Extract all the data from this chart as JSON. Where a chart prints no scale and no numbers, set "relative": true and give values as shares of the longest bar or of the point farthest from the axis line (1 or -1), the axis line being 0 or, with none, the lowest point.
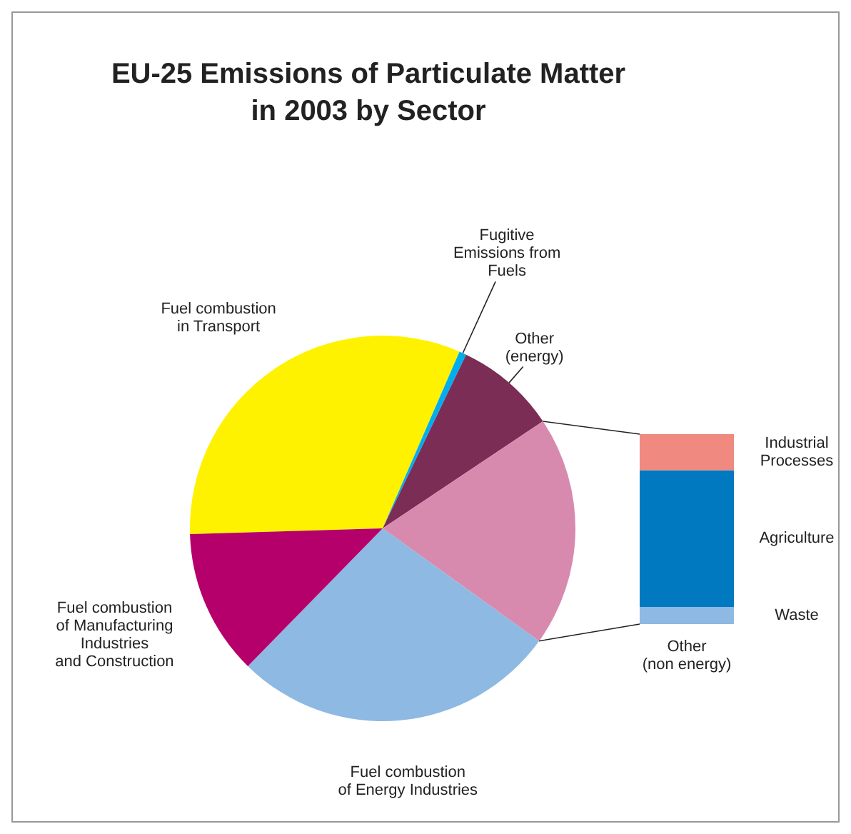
{
  "chart_data": [
    {
      "type": "pie",
      "title": "EU-25 Emissions of Particulate Matter\nin 2003 by Sector",
      "categories": [
        "Fuel combustion\nin Transport",
        "Fugitive\nEmissions from\nFuels",
        "Other\n(energy)",
        null,
        "Fuel combustion\nof Energy Industries",
        "Fuel combustion\nof Manufacturing\nIndustries\nand Construction"
      ],
      "values": [
        32.0,
        0.6,
        8.5,
        19.3,
        27.4,
        12.2
      ],
      "colors": [
        "#fff200",
        "#00aeef",
        "#7b2d55",
        "#d88aae",
        "#8db9e2",
        "#b5006b"
      ]
    },
    {
      "type": "bar",
      "categories": [
        "Other\n(non energy)"
      ],
      "stacked": true,
      "relative": true,
      "series": [
        {
          "name": "Waste",
          "color": "#8db9e2",
          "values": [
            0.09
          ]
        },
        {
          "name": "Agriculture",
          "color": "#0079c1",
          "values": [
            0.72
          ]
        },
        {
          "name": "Industrial\nProcesses",
          "color": "#f08a80",
          "values": [
            0.19
          ]
        }
      ]
    }
  ]
}
